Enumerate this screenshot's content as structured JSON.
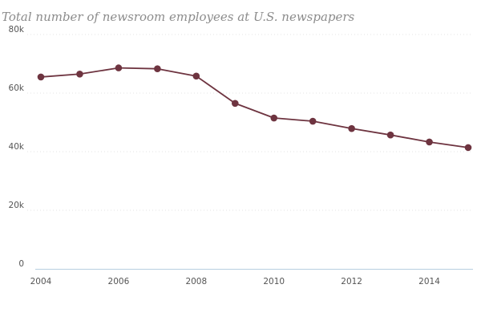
{
  "chart_data": {
    "type": "line",
    "title": "Total number of newsroom employees at U.S. newspapers",
    "xlabel": "",
    "ylabel": "",
    "x": [
      2004,
      2005,
      2006,
      2007,
      2008,
      2009,
      2010,
      2011,
      2012,
      2013,
      2014,
      2015
    ],
    "series": [
      {
        "values": [
          65500,
          66500,
          68600,
          68300,
          65800,
          56500,
          51500,
          50400,
          47900,
          45700,
          43300,
          41400
        ]
      }
    ],
    "xlim": [
      2004,
      2015
    ],
    "ylim": [
      0,
      80000
    ],
    "x_ticks": [
      2004,
      2006,
      2008,
      2010,
      2012,
      2014
    ],
    "x_tick_labels": [
      "2004",
      "2006",
      "2008",
      "2010",
      "2012",
      "2014"
    ],
    "y_ticks": [
      0,
      20000,
      40000,
      60000,
      80000
    ],
    "y_tick_labels": [
      "0",
      "20k",
      "40k",
      "60k",
      "80k"
    ],
    "grid": true,
    "colors": {
      "line": "#6e3440",
      "grid": "#e3e3e3",
      "axis": "#b8cfe0"
    }
  }
}
